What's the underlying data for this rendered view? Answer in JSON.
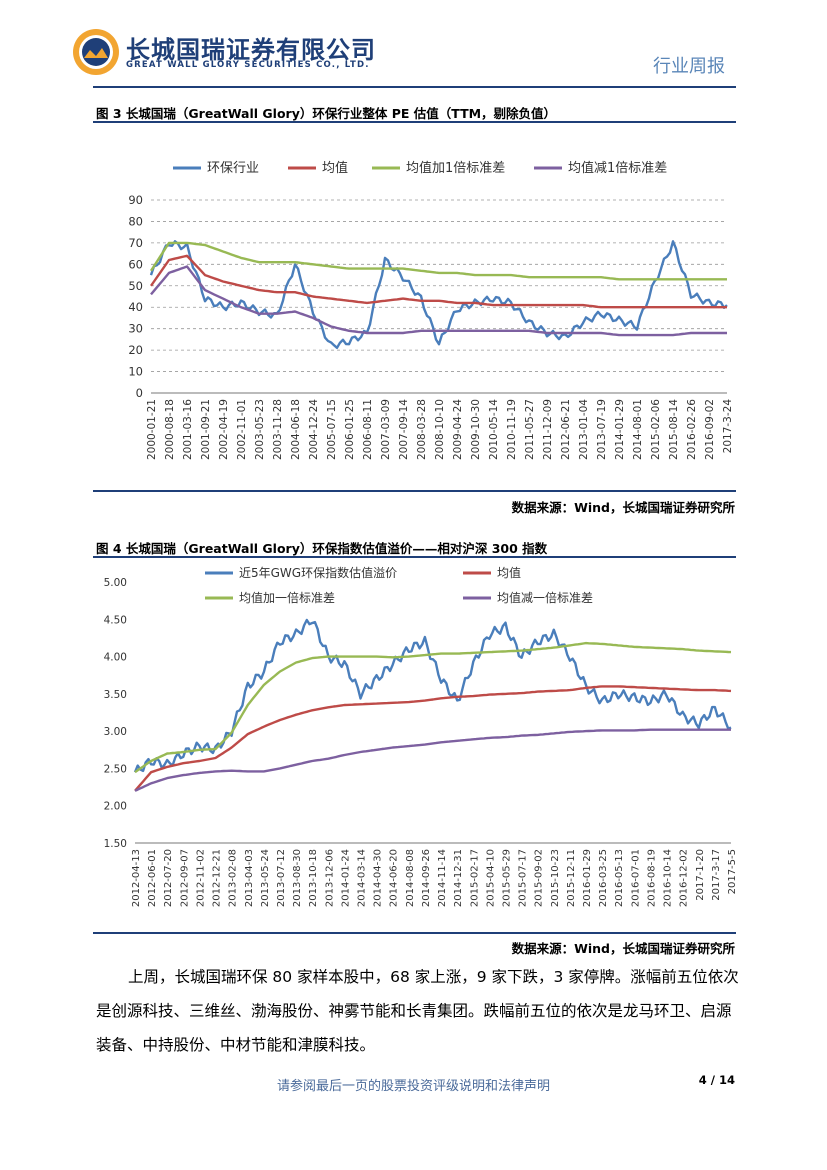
{
  "header": {
    "company_cn": "长城国瑞证券有限公司",
    "company_en": "GREAT WALL GLORY SECURITIES CO., LTD.",
    "report_type": "行业周报"
  },
  "figure3": {
    "title": "图 3 长城国瑞（GreatWall Glory）环保行业整体 PE 估值（TTM，剔除负值）",
    "source": "数据来源：Wind，长城国瑞证券研究所"
  },
  "figure4": {
    "title": "图 4 长城国瑞（GreatWall Glory）环保指数估值溢价——相对沪深 300 指数",
    "source": "数据来源：Wind，长城国瑞证券研究所"
  },
  "body": {
    "paragraph": "上周，长城国瑞环保 80 家样本股中，68 家上涨，9 家下跌，3 家停牌。涨幅前五位依次是创源科技、三维丝、渤海股份、神雾节能和长青集团。跌幅前五位的依次是龙马环卫、启源装备、中持股份、中材节能和津膜科技。"
  },
  "footer": {
    "note": "请参阅最后一页的股票投资评级说明和法律声明",
    "page": "4 / 14"
  },
  "colors": {
    "blue": "#4a7ebb",
    "red": "#be4b48",
    "green": "#98b954",
    "purple": "#7d60a0",
    "brand": "#1f3f78"
  },
  "chart_data": [
    {
      "type": "line",
      "legend": [
        "环保行业",
        "均值",
        "均值加1倍标准差",
        "均值减1倍标准差"
      ],
      "ylim": [
        0,
        90
      ],
      "yticks": [
        "0",
        "10",
        "20",
        "30",
        "40",
        "50",
        "60",
        "70",
        "80",
        "90"
      ],
      "categories": [
        "2000-01-21",
        "2000-08-18",
        "2001-03-16",
        "2001-09-21",
        "2002-04-19",
        "2002-11-01",
        "2003-05-23",
        "2003-11-28",
        "2004-06-18",
        "2004-12-24",
        "2005-07-15",
        "2006-01-25",
        "2006-08-11",
        "2007-03-09",
        "2007-09-14",
        "2008-03-28",
        "2008-10-10",
        "2009-04-24",
        "2009-10-30",
        "2010-05-14",
        "2010-11-19",
        "2011-05-27",
        "2011-12-09",
        "2012-06-21",
        "2013-01-04",
        "2013-07-19",
        "2014-01-29",
        "2014-08-01",
        "2015-02-06",
        "2015-08-14",
        "2016-02-26",
        "2016-09-02",
        "2017-3-24"
      ],
      "series": [
        {
          "name": "环保行业",
          "values": [
            55,
            70,
            68,
            44,
            40,
            42,
            38,
            36,
            60,
            38,
            22,
            24,
            28,
            62,
            54,
            44,
            23,
            39,
            42,
            44,
            42,
            33,
            28,
            26,
            33,
            37,
            34,
            31,
            52,
            70,
            46,
            42,
            41
          ]
        },
        {
          "name": "均值",
          "values": [
            50,
            62,
            64,
            55,
            52,
            50,
            48,
            47,
            47,
            45,
            44,
            43,
            42,
            43,
            44,
            43,
            43,
            42,
            42,
            41,
            41,
            41,
            41,
            41,
            41,
            40,
            40,
            40,
            40,
            40,
            40,
            40,
            40
          ]
        },
        {
          "name": "均值加1倍标准差",
          "values": [
            57,
            70,
            70,
            69,
            66,
            63,
            61,
            61,
            61,
            60,
            59,
            58,
            58,
            58,
            58,
            57,
            56,
            56,
            55,
            55,
            55,
            54,
            54,
            54,
            54,
            54,
            53,
            53,
            53,
            53,
            53,
            53,
            53
          ]
        },
        {
          "name": "均值减1倍标准差",
          "values": [
            46,
            56,
            59,
            48,
            44,
            40,
            37,
            37,
            38,
            35,
            31,
            29,
            28,
            28,
            28,
            29,
            29,
            29,
            29,
            29,
            29,
            29,
            28,
            28,
            28,
            28,
            27,
            27,
            27,
            27,
            28,
            28,
            28
          ]
        }
      ]
    },
    {
      "type": "line",
      "legend": [
        "近5年GWG环保指数估值溢价",
        "均值",
        "均值加一倍标准差",
        "均值减一倍标准差"
      ],
      "ylim": [
        1.5,
        5.0
      ],
      "yticks": [
        "1.50",
        "2.00",
        "2.50",
        "3.00",
        "3.50",
        "4.00",
        "4.50",
        "5.00"
      ],
      "categories": [
        "2012-04-13",
        "2012-06-01",
        "2012-07-20",
        "2012-09-07",
        "2012-11-02",
        "2012-12-21",
        "2013-02-08",
        "2013-04-03",
        "2013-05-24",
        "2013-07-12",
        "2013-08-30",
        "2013-10-18",
        "2013-12-06",
        "2014-01-24",
        "2014-03-14",
        "2014-04-30",
        "2014-06-20",
        "2014-08-08",
        "2014-09-26",
        "2014-11-14",
        "2014-12-31",
        "2015-02-17",
        "2015-04-10",
        "2015-05-29",
        "2015-07-17",
        "2015-09-02",
        "2015-10-23",
        "2015-12-11",
        "2016-01-29",
        "2016-03-25",
        "2016-05-13",
        "2016-07-01",
        "2016-08-19",
        "2016-10-14",
        "2016-12-02",
        "2017-1-20",
        "2017-3-17",
        "2017-5-5"
      ],
      "series": [
        {
          "name": "近5年GWG环保指数估值溢价",
          "values": [
            2.45,
            2.6,
            2.55,
            2.7,
            2.8,
            2.75,
            3.0,
            3.6,
            3.8,
            4.2,
            4.3,
            4.5,
            4.0,
            3.9,
            3.5,
            3.7,
            3.9,
            4.1,
            4.2,
            3.7,
            3.4,
            3.9,
            4.3,
            4.4,
            4.0,
            4.2,
            4.3,
            4.0,
            3.6,
            3.4,
            3.5,
            3.45,
            3.4,
            3.5,
            3.2,
            3.1,
            3.3,
            3.05
          ]
        },
        {
          "name": "均值",
          "values": [
            2.2,
            2.45,
            2.52,
            2.57,
            2.6,
            2.64,
            2.78,
            2.96,
            3.06,
            3.15,
            3.22,
            3.28,
            3.32,
            3.35,
            3.36,
            3.37,
            3.38,
            3.39,
            3.41,
            3.44,
            3.46,
            3.47,
            3.49,
            3.5,
            3.51,
            3.53,
            3.54,
            3.55,
            3.58,
            3.6,
            3.6,
            3.59,
            3.58,
            3.57,
            3.56,
            3.55,
            3.55,
            3.54
          ]
        },
        {
          "name": "均值加一倍标准差",
          "values": [
            2.45,
            2.6,
            2.7,
            2.72,
            2.75,
            2.76,
            2.98,
            3.35,
            3.62,
            3.8,
            3.92,
            3.98,
            4.0,
            4.0,
            4.0,
            4.0,
            3.99,
            4.0,
            4.02,
            4.04,
            4.04,
            4.05,
            4.06,
            4.07,
            4.08,
            4.1,
            4.12,
            4.15,
            4.18,
            4.17,
            4.15,
            4.13,
            4.12,
            4.11,
            4.1,
            4.08,
            4.07,
            4.06
          ]
        },
        {
          "name": "均值减一倍标准差",
          "values": [
            2.2,
            2.3,
            2.37,
            2.41,
            2.44,
            2.46,
            2.47,
            2.46,
            2.46,
            2.5,
            2.55,
            2.6,
            2.63,
            2.68,
            2.72,
            2.75,
            2.78,
            2.8,
            2.82,
            2.85,
            2.87,
            2.89,
            2.91,
            2.92,
            2.94,
            2.95,
            2.97,
            2.99,
            3.0,
            3.01,
            3.01,
            3.01,
            3.02,
            3.02,
            3.02,
            3.02,
            3.02,
            3.02
          ]
        }
      ]
    }
  ]
}
